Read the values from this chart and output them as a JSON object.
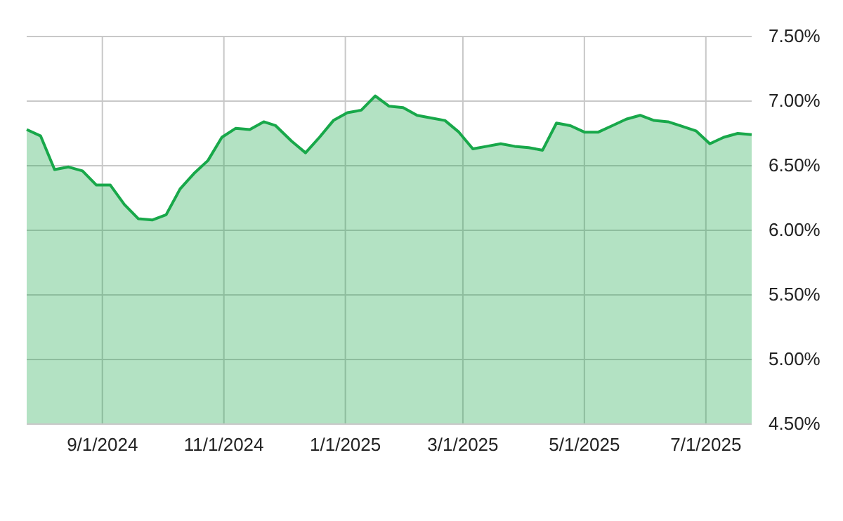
{
  "chart_data": {
    "type": "area",
    "x": [
      "2024-07-25",
      "2024-08-01",
      "2024-08-08",
      "2024-08-15",
      "2024-08-22",
      "2024-08-29",
      "2024-09-05",
      "2024-09-12",
      "2024-09-19",
      "2024-09-26",
      "2024-10-03",
      "2024-10-10",
      "2024-10-17",
      "2024-10-24",
      "2024-10-31",
      "2024-11-07",
      "2024-11-14",
      "2024-11-21",
      "2024-11-27",
      "2024-12-05",
      "2024-12-12",
      "2024-12-19",
      "2024-12-26",
      "2025-01-02",
      "2025-01-09",
      "2025-01-16",
      "2025-01-23",
      "2025-01-30",
      "2025-02-06",
      "2025-02-13",
      "2025-02-20",
      "2025-02-27",
      "2025-03-06",
      "2025-03-13",
      "2025-03-20",
      "2025-03-27",
      "2025-04-03",
      "2025-04-10",
      "2025-04-17",
      "2025-04-24",
      "2025-05-01",
      "2025-05-08",
      "2025-05-15",
      "2025-05-22",
      "2025-05-29",
      "2025-06-05",
      "2025-06-12",
      "2025-06-18",
      "2025-06-26",
      "2025-07-03",
      "2025-07-10",
      "2025-07-17",
      "2025-07-24"
    ],
    "series": [
      {
        "color": "#18a84a",
        "values": [
          6.78,
          6.73,
          6.47,
          6.49,
          6.46,
          6.35,
          6.35,
          6.2,
          6.09,
          6.08,
          6.12,
          6.32,
          6.44,
          6.54,
          6.72,
          6.79,
          6.78,
          6.84,
          6.81,
          6.69,
          6.6,
          6.72,
          6.85,
          6.91,
          6.93,
          7.04,
          6.96,
          6.95,
          6.89,
          6.87,
          6.85,
          6.76,
          6.63,
          6.65,
          6.67,
          6.65,
          6.64,
          6.62,
          6.83,
          6.81,
          6.76,
          6.76,
          6.81,
          6.86,
          6.89,
          6.85,
          6.84,
          6.81,
          6.77,
          6.67,
          6.72,
          6.75,
          6.74
        ]
      }
    ],
    "xlim": [
      "2024-07-25",
      "2025-07-24"
    ],
    "xticks": [
      {
        "value": "2024-09-01",
        "label": "9/1/2024"
      },
      {
        "value": "2024-11-01",
        "label": "11/1/2024"
      },
      {
        "value": "2025-01-01",
        "label": "1/1/2025"
      },
      {
        "value": "2025-03-01",
        "label": "3/1/2025"
      },
      {
        "value": "2025-05-01",
        "label": "5/1/2025"
      },
      {
        "value": "2025-07-01",
        "label": "7/1/2025"
      }
    ],
    "ylim": [
      4.5,
      7.5
    ],
    "yticks": [
      {
        "value": 4.5,
        "label": "4.50%"
      },
      {
        "value": 5,
        "label": "5.00%"
      },
      {
        "value": 5.5,
        "label": "5.50%"
      },
      {
        "value": 6,
        "label": "6.00%"
      },
      {
        "value": 6.5,
        "label": "6.50%"
      },
      {
        "value": 7,
        "label": "7.00%"
      },
      {
        "value": 7.5,
        "label": "7.50%"
      }
    ],
    "grid": true
  }
}
